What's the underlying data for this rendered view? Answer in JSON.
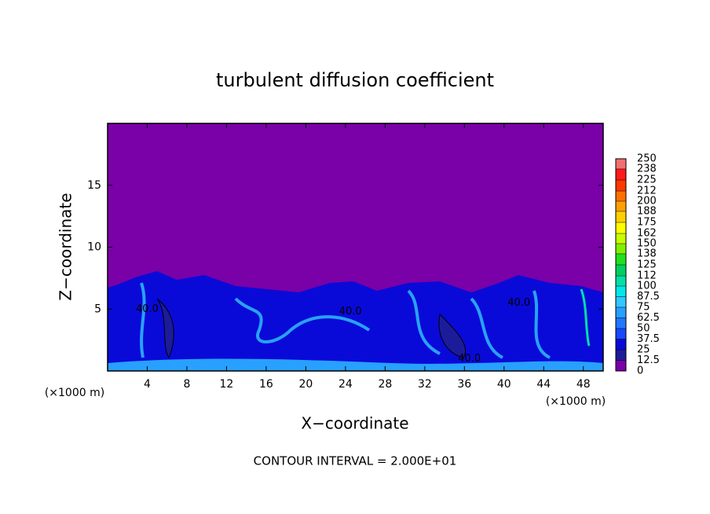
{
  "chart_data": {
    "type": "contour",
    "title": "turbulent diffusion coefficient",
    "x_label": "X−coordinate",
    "y_label": "Z−coordinate",
    "x_unit_left": "(×1000 m)",
    "x_unit_right": "(×1000 m)",
    "footer": "CONTOUR INTERVAL = 2.000E+01",
    "xlim": [
      0,
      50
    ],
    "ylim": [
      0,
      20
    ],
    "xticks": [
      4,
      8,
      12,
      16,
      20,
      24,
      28,
      32,
      36,
      40,
      44,
      48
    ],
    "yticks": [
      5,
      10,
      15
    ],
    "contour_labels": [
      {
        "text": "40.0",
        "x": 4,
        "y": 5
      },
      {
        "text": "40.0",
        "x": 24.5,
        "y": 4.8
      },
      {
        "text": "40.0",
        "x": 36.5,
        "y": 1
      },
      {
        "text": "40.0",
        "x": 41.5,
        "y": 5.5
      }
    ],
    "colorbar": {
      "lim": [
        0,
        250
      ],
      "ticks": [
        0,
        12.5,
        25,
        37.5,
        50,
        62.5,
        75,
        87.5,
        100,
        112,
        125,
        138,
        150,
        162,
        175,
        188,
        200,
        212,
        225,
        238,
        250
      ],
      "colors": [
        "#7a00a8",
        "#1c1c9a",
        "#0a0ad8",
        "#1848ff",
        "#1f78ff",
        "#28a0ff",
        "#30c8ff",
        "#00e8e8",
        "#00e0a8",
        "#00d060",
        "#20e020",
        "#80f000",
        "#c8ff00",
        "#ffff00",
        "#ffd000",
        "#ffa000",
        "#ff7000",
        "#ff3800",
        "#ff1a1a",
        "#f07070"
      ]
    }
  }
}
